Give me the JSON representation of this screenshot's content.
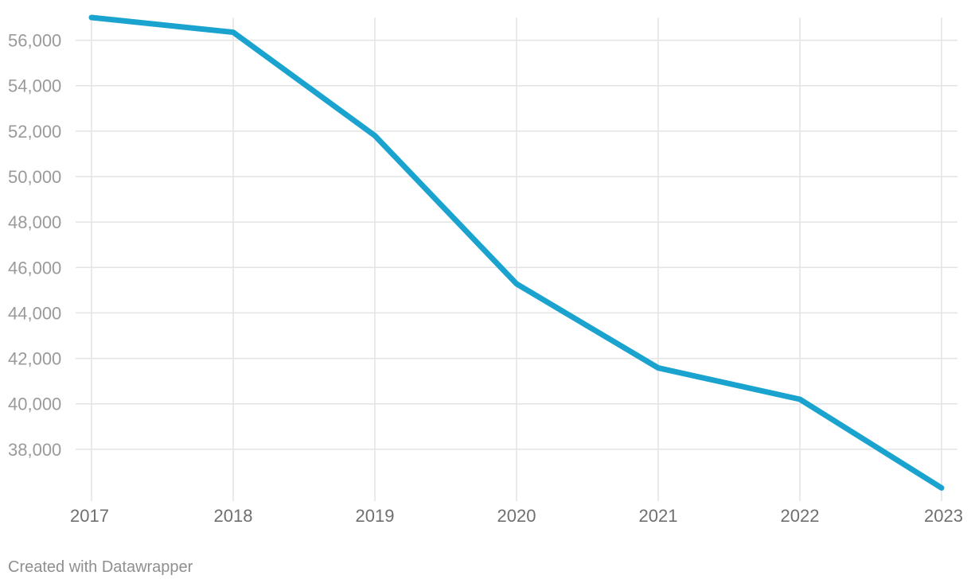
{
  "chart_data": {
    "type": "line",
    "title": "",
    "xlabel": "",
    "ylabel": "",
    "x": [
      "2017",
      "2018",
      "2019",
      "2020",
      "2021",
      "2022",
      "2023"
    ],
    "series": [
      {
        "name": "Value",
        "values": [
          57000,
          56350,
          51800,
          45280,
          41580,
          40200,
          36300
        ]
      }
    ],
    "ylim": [
      36000,
      57000
    ],
    "yticks": [
      38000,
      40000,
      42000,
      44000,
      46000,
      48000,
      50000,
      52000,
      54000,
      56000
    ],
    "ytick_labels": [
      "38,000",
      "40,000",
      "42,000",
      "44,000",
      "46,000",
      "48,000",
      "50,000",
      "52,000",
      "54,000",
      "56,000"
    ],
    "grid": true,
    "line_color": "#1aa3cf",
    "grid_color": "#e3e3e3"
  },
  "footer": {
    "credit": "Created with Datawrapper"
  }
}
